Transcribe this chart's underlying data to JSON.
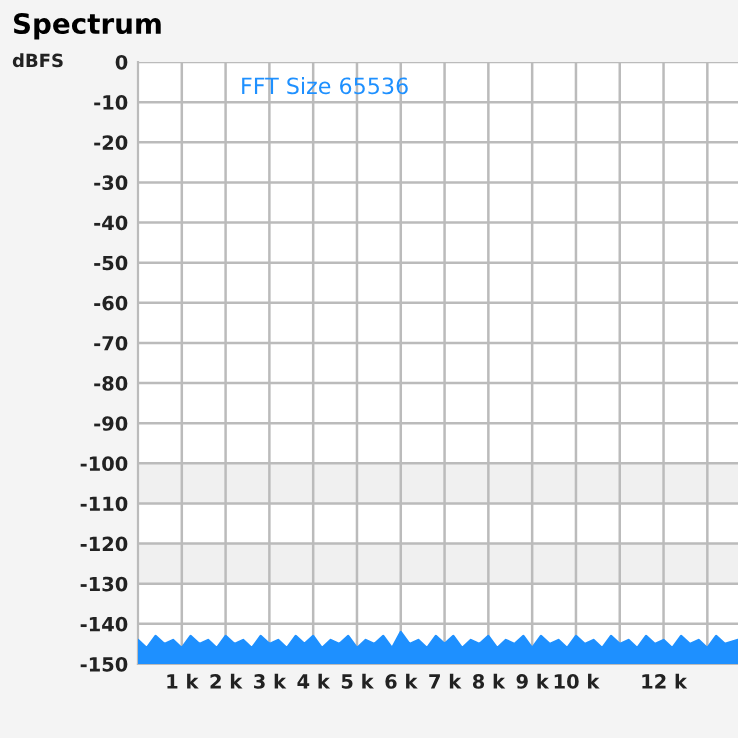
{
  "chart_data": {
    "type": "area",
    "title": "Spectrum",
    "ylabel": "dBFS",
    "annotations": [
      "FFT Size 65536"
    ],
    "x": [
      0,
      200,
      400,
      600,
      800,
      1000,
      1200,
      1400,
      1600,
      1800,
      2000,
      2200,
      2400,
      2600,
      2800,
      3000,
      3200,
      3400,
      3600,
      3800,
      4000,
      4200,
      4400,
      4600,
      4800,
      5000,
      5200,
      5400,
      5600,
      5800,
      6000,
      6200,
      6400,
      6600,
      6800,
      7000,
      7200,
      7400,
      7600,
      7800,
      8000,
      8200,
      8400,
      8600,
      8800,
      9000,
      9200,
      9400,
      9600,
      9800,
      10000,
      10200,
      10400,
      10600,
      10800,
      11000,
      11200,
      11400,
      11600,
      11800,
      12000,
      12200,
      12400,
      12600,
      12800,
      13000,
      13200,
      13400,
      13700
    ],
    "series": [
      {
        "color": "#1e90ff",
        "values": [
          -144,
          -146,
          -143,
          -145,
          -144,
          -146,
          -143,
          -145,
          -144,
          -146,
          -143,
          -145,
          -144,
          -146,
          -143,
          -145,
          -144,
          -146,
          -143,
          -145,
          -143,
          -146,
          -144,
          -145,
          -143,
          -146,
          -144,
          -145,
          -143,
          -146,
          -142,
          -145,
          -144,
          -146,
          -143,
          -145,
          -143,
          -146,
          -144,
          -145,
          -143,
          -146,
          -144,
          -145,
          -143,
          -146,
          -143,
          -145,
          -144,
          -146,
          -143,
          -145,
          -144,
          -146,
          -143,
          -145,
          -144,
          -146,
          -143,
          -145,
          -144,
          -146,
          -143,
          -145,
          -144,
          -146,
          -143,
          -145,
          -144
        ]
      }
    ],
    "xlim": [
      0,
      13700
    ],
    "ylim": [
      -150,
      0
    ],
    "xticks": [
      {
        "value": 1000,
        "label": "1 k"
      },
      {
        "value": 2000,
        "label": "2 k"
      },
      {
        "value": 3000,
        "label": "3 k"
      },
      {
        "value": 4000,
        "label": "4 k"
      },
      {
        "value": 5000,
        "label": "5 k"
      },
      {
        "value": 6000,
        "label": "6 k"
      },
      {
        "value": 7000,
        "label": "7 k"
      },
      {
        "value": 8000,
        "label": "8 k"
      },
      {
        "value": 9000,
        "label": "9 k"
      },
      {
        "value": 10000,
        "label": "10 k"
      },
      {
        "value": 11000,
        "label": null
      },
      {
        "value": 12000,
        "label": "12 k"
      },
      {
        "value": 13000,
        "label": null
      }
    ],
    "yticks": [
      0,
      -10,
      -20,
      -30,
      -40,
      -50,
      -60,
      -70,
      -80,
      -90,
      -100,
      -110,
      -120,
      -130,
      -140,
      -150
    ],
    "bands": [
      {
        "axis": "y",
        "from": -110,
        "to": -100,
        "color": "#f0f0f0"
      },
      {
        "axis": "y",
        "from": -130,
        "to": -120,
        "color": "#f0f0f0"
      }
    ],
    "grid": true
  }
}
